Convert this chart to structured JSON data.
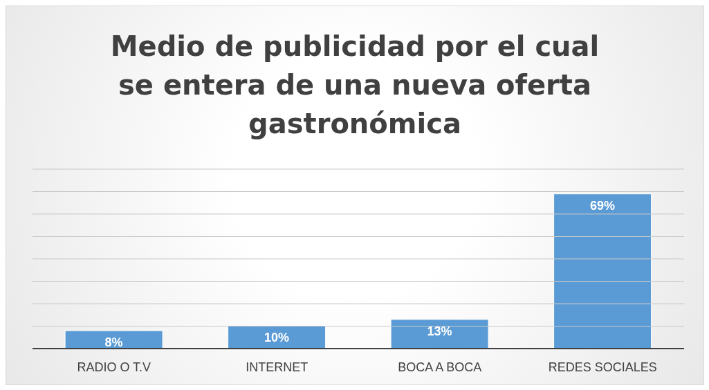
{
  "chart_data": {
    "type": "bar",
    "title": "Medio de publicidad por el cual se entera de una nueva oferta gastronómica",
    "categories": [
      "RADIO O T.V",
      "INTERNET",
      "BOCA A BOCA",
      "REDES SOCIALES"
    ],
    "values": [
      8,
      10,
      13,
      69
    ],
    "color": "#5b9bd5",
    "value_labels": [
      "8%",
      "10%",
      "13%",
      "69%"
    ],
    "ylim": [
      0,
      80
    ],
    "yticks": [
      {
        "value": 0,
        "label": null
      },
      {
        "value": 10,
        "label": null
      },
      {
        "value": 20,
        "label": null
      },
      {
        "value": 30,
        "label": null
      },
      {
        "value": 40,
        "label": null
      },
      {
        "value": 50,
        "label": null
      },
      {
        "value": 60,
        "label": null
      },
      {
        "value": 70,
        "label": null
      },
      {
        "value": 80,
        "label": null
      }
    ],
    "grid": "y",
    "tick_labels": "x"
  }
}
